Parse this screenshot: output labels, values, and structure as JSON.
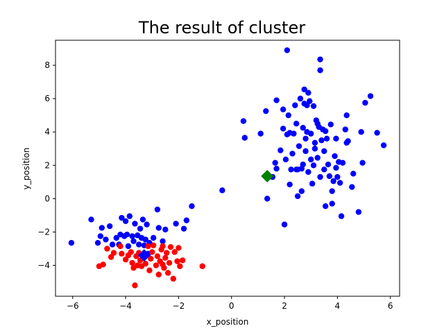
{
  "chart_data": {
    "type": "scatter",
    "title": "The result of cluster",
    "xlabel": "x_position",
    "ylabel": "y_position",
    "xlim": [
      -6.65,
      6.35
    ],
    "ylim": [
      -5.85,
      9.5
    ],
    "xticks": [
      -6,
      -4,
      -2,
      0,
      2,
      4,
      6
    ],
    "yticks": [
      -4,
      -2,
      0,
      2,
      4,
      6,
      8
    ],
    "grid": false,
    "legend": "none",
    "series": [
      {
        "color": "#0000ff",
        "marker": "circle",
        "points": [
          [
            -6.05,
            -2.65
          ],
          [
            -5.05,
            -2.65
          ],
          [
            -4.95,
            -2.25
          ],
          [
            -4.9,
            -1.75
          ],
          [
            -4.75,
            -2.45
          ],
          [
            -4.5,
            -2.75
          ],
          [
            -4.35,
            -2.35
          ],
          [
            -4.2,
            -2.15
          ],
          [
            -4.15,
            -1.15
          ],
          [
            -4.05,
            -2.25
          ],
          [
            -4.0,
            -1.35
          ],
          [
            -3.95,
            -2.15
          ],
          [
            -3.85,
            -1.05
          ],
          [
            -3.75,
            -2.25
          ],
          [
            -3.7,
            -2.55
          ],
          [
            -3.65,
            -1.5
          ],
          [
            -3.55,
            -2.2
          ],
          [
            -3.5,
            -2.75
          ],
          [
            -3.45,
            -1.8
          ],
          [
            -3.4,
            -2.35
          ],
          [
            -3.35,
            -1.25
          ],
          [
            -3.3,
            -2.8
          ],
          [
            -3.25,
            -2.45
          ],
          [
            -3.15,
            -3.3
          ],
          [
            -3.2,
            -1.55
          ],
          [
            -3.1,
            -2.65
          ],
          [
            -2.95,
            -2.35
          ],
          [
            -2.8,
            -0.65
          ],
          [
            -2.75,
            -1.75
          ],
          [
            -2.6,
            -2.55
          ],
          [
            -2.5,
            -1.85
          ],
          [
            -2.1,
            -1.5
          ],
          [
            -1.8,
            -1.8
          ],
          [
            -1.7,
            -1.3
          ],
          [
            -1.5,
            -0.45
          ],
          [
            -0.35,
            0.5
          ],
          [
            -5.3,
            -1.25
          ],
          [
            -4.6,
            -1.65
          ],
          [
            -3.9,
            -2.85
          ],
          [
            -4.25,
            -2.75
          ],
          [
            0.45,
            4.65
          ],
          [
            0.5,
            3.65
          ],
          [
            1.1,
            3.9
          ],
          [
            1.3,
            5.25
          ],
          [
            1.35,
            0.0
          ],
          [
            1.55,
            1.3
          ],
          [
            1.65,
            2.15
          ],
          [
            1.7,
            5.9
          ],
          [
            1.7,
            1.8
          ],
          [
            1.85,
            2.9
          ],
          [
            1.95,
            4.2
          ],
          [
            1.95,
            5.35
          ],
          [
            2.0,
            -1.55
          ],
          [
            2.05,
            2.35
          ],
          [
            2.1,
            3.85
          ],
          [
            2.15,
            5.0
          ],
          [
            2.2,
            0.85
          ],
          [
            2.25,
            1.75
          ],
          [
            2.3,
            2.7
          ],
          [
            2.35,
            3.9
          ],
          [
            2.4,
            5.6
          ],
          [
            2.45,
            4.5
          ],
          [
            2.5,
            0.15
          ],
          [
            2.5,
            1.75
          ],
          [
            2.55,
            3.15
          ],
          [
            2.6,
            6.0
          ],
          [
            2.65,
            0.45
          ],
          [
            2.7,
            2.05
          ],
          [
            2.7,
            4.25
          ],
          [
            2.75,
            5.7
          ],
          [
            2.75,
            6.55
          ],
          [
            2.8,
            3.6
          ],
          [
            2.8,
            2.85
          ],
          [
            2.85,
            4.0
          ],
          [
            2.9,
            6.35
          ],
          [
            2.9,
            1.6
          ],
          [
            2.95,
            5.85
          ],
          [
            3.0,
            3.9
          ],
          [
            3.05,
            0.9
          ],
          [
            3.1,
            2.0
          ],
          [
            3.1,
            5.55
          ],
          [
            3.15,
            3.35
          ],
          [
            3.2,
            4.7
          ],
          [
            3.25,
            2.45
          ],
          [
            3.3,
            4.3
          ],
          [
            3.35,
            1.3
          ],
          [
            3.35,
            7.7
          ],
          [
            3.35,
            8.35
          ],
          [
            3.4,
            3.5
          ],
          [
            3.45,
            4.15
          ],
          [
            3.5,
            2.85
          ],
          [
            3.5,
            1.75
          ],
          [
            3.55,
            -0.45
          ],
          [
            3.6,
            3.6
          ],
          [
            3.65,
            2.05
          ],
          [
            3.7,
            1.35
          ],
          [
            3.75,
            4.45
          ],
          [
            3.8,
            0.45
          ],
          [
            3.8,
            -0.3
          ],
          [
            3.85,
            1.05
          ],
          [
            3.9,
            2.55
          ],
          [
            3.95,
            3.6
          ],
          [
            4.0,
            1.3
          ],
          [
            4.05,
            2.2
          ],
          [
            4.1,
            0.95
          ],
          [
            4.15,
            -1.05
          ],
          [
            4.2,
            2.15
          ],
          [
            4.3,
            4.15
          ],
          [
            4.35,
            5.0
          ],
          [
            4.4,
            3.45
          ],
          [
            4.55,
            0.7
          ],
          [
            4.6,
            1.5
          ],
          [
            4.8,
            -0.8
          ],
          [
            4.9,
            4.0
          ],
          [
            4.95,
            2.15
          ],
          [
            5.05,
            5.75
          ],
          [
            5.25,
            6.15
          ],
          [
            5.5,
            3.95
          ],
          [
            5.75,
            3.2
          ],
          [
            2.1,
            8.9
          ],
          [
            2.85,
            5.6
          ],
          [
            3.25,
            4.5
          ],
          [
            3.15,
            3.0
          ],
          [
            3.55,
            4.05
          ],
          [
            2.65,
            1.8
          ],
          [
            3.0,
            2.35
          ],
          [
            4.35,
            3.35
          ],
          [
            2.2,
            3.95
          ],
          [
            2.45,
            1.75
          ],
          [
            3.95,
            1.85
          ]
        ]
      },
      {
        "color": "#ff0000",
        "marker": "circle",
        "points": [
          [
            -5.0,
            -4.05
          ],
          [
            -4.85,
            -3.95
          ],
          [
            -4.7,
            -3.0
          ],
          [
            -4.55,
            -3.5
          ],
          [
            -4.45,
            -3.25
          ],
          [
            -4.2,
            -2.85
          ],
          [
            -4.15,
            -3.3
          ],
          [
            -4.0,
            -3.65
          ],
          [
            -3.9,
            -3.4
          ],
          [
            -3.8,
            -3.2
          ],
          [
            -3.75,
            -3.85
          ],
          [
            -3.7,
            -4.15
          ],
          [
            -3.65,
            -5.2
          ],
          [
            -3.6,
            -3.45
          ],
          [
            -3.55,
            -4.0
          ],
          [
            -3.45,
            -3.7
          ],
          [
            -3.4,
            -4.05
          ],
          [
            -3.35,
            -3.35
          ],
          [
            -3.25,
            -3.9
          ],
          [
            -3.15,
            -2.85
          ],
          [
            -3.1,
            -4.3
          ],
          [
            -3.05,
            -3.6
          ],
          [
            -3.0,
            -3.2
          ],
          [
            -2.95,
            -2.8
          ],
          [
            -2.85,
            -4.0
          ],
          [
            -2.8,
            -3.45
          ],
          [
            -2.75,
            -4.55
          ],
          [
            -2.7,
            -3.75
          ],
          [
            -2.65,
            -3.05
          ],
          [
            -2.6,
            -2.85
          ],
          [
            -2.55,
            -4.15
          ],
          [
            -2.5,
            -3.55
          ],
          [
            -2.45,
            -3.25
          ],
          [
            -2.4,
            -4.45
          ],
          [
            -2.35,
            -3.85
          ],
          [
            -2.3,
            -2.9
          ],
          [
            -2.2,
            -4.8
          ],
          [
            -2.15,
            -3.2
          ],
          [
            -2.05,
            -3.75
          ],
          [
            -2.0,
            -2.95
          ],
          [
            -1.95,
            -4.05
          ],
          [
            -1.85,
            -3.7
          ],
          [
            -1.1,
            -4.05
          ],
          [
            -3.5,
            -3.25
          ],
          [
            -2.6,
            -3.95
          ]
        ]
      }
    ],
    "centroids": [
      {
        "x": 1.35,
        "y": 1.35,
        "color": "#008000",
        "marker": "diamond"
      },
      {
        "x": -3.3,
        "y": -3.4,
        "color": "#0000ff",
        "marker": "diamond"
      }
    ]
  }
}
